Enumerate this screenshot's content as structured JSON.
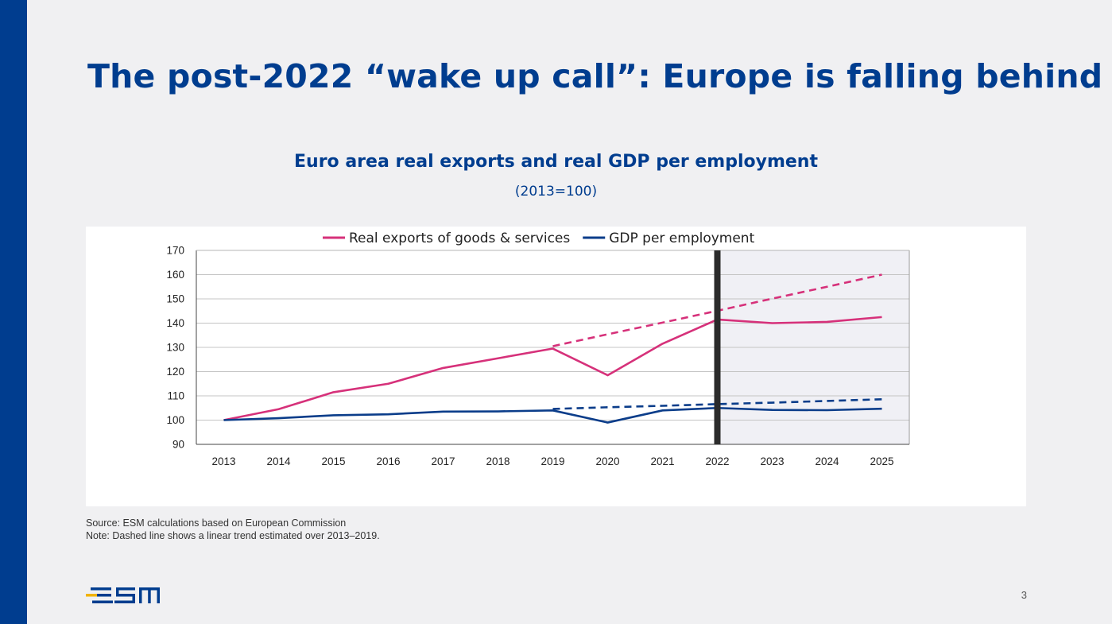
{
  "slide": {
    "title": "The post-2022 “wake up call”: Europe is falling behind",
    "source": "Source: ESM calculations based on European Commission",
    "note": "Note: Dashed line shows a linear trend estimated over 2013–2019.",
    "page_number": "3",
    "logo_text": "esm"
  },
  "colors": {
    "brand_blue": "#003d8f",
    "exports_pink": "#d6317a",
    "gdp_navy": "#0b3d8a",
    "forecast_shade": "#f0f0f5",
    "marker_line": "#2b2b2b"
  },
  "chart_data": {
    "type": "line",
    "title": "Euro area real exports and real GDP per employment",
    "subtitle": "(2013=100)",
    "categories": [
      "2013",
      "2014",
      "2015",
      "2016",
      "2017",
      "2018",
      "2019",
      "2020",
      "2021",
      "2022",
      "2023",
      "2024",
      "2025"
    ],
    "y_ticks": [
      "90",
      "100",
      "110",
      "120",
      "130",
      "140",
      "150",
      "160",
      "170"
    ],
    "ylim": [
      90,
      170
    ],
    "grid": true,
    "legend_position": "top",
    "shaded_region": {
      "from": "2022",
      "to": "2025"
    },
    "vertical_marker": "2022",
    "series": [
      {
        "name": "Real exports of goods & services",
        "style": "solid",
        "color": "#d6317a",
        "values": [
          100,
          104.5,
          111.5,
          115,
          121.5,
          125.5,
          129.5,
          118.5,
          131.5,
          141.5,
          140,
          140.5,
          142.5
        ]
      },
      {
        "name": "GDP per employment",
        "style": "solid",
        "color": "#0b3d8a",
        "values": [
          100,
          100.8,
          102,
          102.4,
          103.5,
          103.6,
          104,
          99,
          104,
          105,
          104.2,
          104.1,
          104.7
        ]
      }
    ],
    "trend_lines": [
      {
        "style": "dashed",
        "color": "#d6317a",
        "x": [
          "2019",
          "2020",
          "2021",
          "2022",
          "2023",
          "2024",
          "2025"
        ],
        "values": [
          130.5,
          135.4,
          140.2,
          145.1,
          150.1,
          155,
          160
        ]
      },
      {
        "style": "dashed",
        "color": "#0b3d8a",
        "x": [
          "2019",
          "2020",
          "2021",
          "2022",
          "2023",
          "2024",
          "2025"
        ],
        "values": [
          104.6,
          105.3,
          105.9,
          106.6,
          107.2,
          107.9,
          108.6
        ]
      }
    ]
  }
}
